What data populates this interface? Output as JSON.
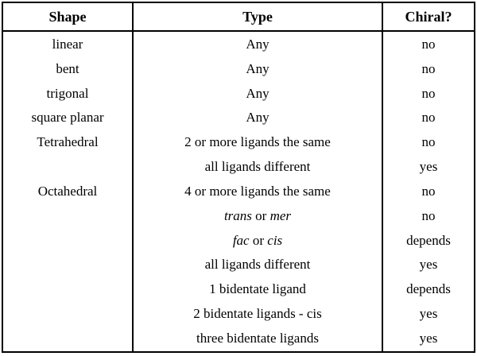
{
  "table": {
    "headers": [
      "Shape",
      "Type",
      "Chiral?"
    ],
    "rows": [
      {
        "shape": "linear",
        "type": [
          {
            "text": "Any",
            "italic": false
          }
        ],
        "chiral": "no"
      },
      {
        "shape": "bent",
        "type": [
          {
            "text": "Any",
            "italic": false
          }
        ],
        "chiral": "no"
      },
      {
        "shape": "trigonal",
        "type": [
          {
            "text": "Any",
            "italic": false
          }
        ],
        "chiral": "no"
      },
      {
        "shape": "square planar",
        "type": [
          {
            "text": "Any",
            "italic": false
          }
        ],
        "chiral": "no"
      },
      {
        "shape": "Tetrahedral",
        "type": [
          {
            "text": "2 or more ligands the same",
            "italic": false
          }
        ],
        "chiral": "no"
      },
      {
        "shape": "",
        "type": [
          {
            "text": "all ligands different",
            "italic": false
          }
        ],
        "chiral": "yes"
      },
      {
        "shape": "Octahedral",
        "type": [
          {
            "text": "4 or more ligands the same",
            "italic": false
          }
        ],
        "chiral": "no"
      },
      {
        "shape": "",
        "type": [
          {
            "text": "trans",
            "italic": true
          },
          {
            "text": " or ",
            "italic": false
          },
          {
            "text": "mer",
            "italic": true
          }
        ],
        "chiral": "no"
      },
      {
        "shape": "",
        "type": [
          {
            "text": "fac",
            "italic": true
          },
          {
            "text": " or ",
            "italic": false
          },
          {
            "text": "cis",
            "italic": true
          }
        ],
        "chiral": "depends"
      },
      {
        "shape": "",
        "type": [
          {
            "text": "all ligands different",
            "italic": false
          }
        ],
        "chiral": "yes"
      },
      {
        "shape": "",
        "type": [
          {
            "text": "1 bidentate ligand",
            "italic": false
          }
        ],
        "chiral": "depends"
      },
      {
        "shape": "",
        "type": [
          {
            "text": "2 bidentate ligands - cis",
            "italic": false
          }
        ],
        "chiral": "yes"
      },
      {
        "shape": "",
        "type": [
          {
            "text": "three bidentate ligands",
            "italic": false
          }
        ],
        "chiral": "yes"
      }
    ]
  },
  "colors": {
    "border": "#000000",
    "text": "#000000",
    "background": "#ffffff"
  }
}
